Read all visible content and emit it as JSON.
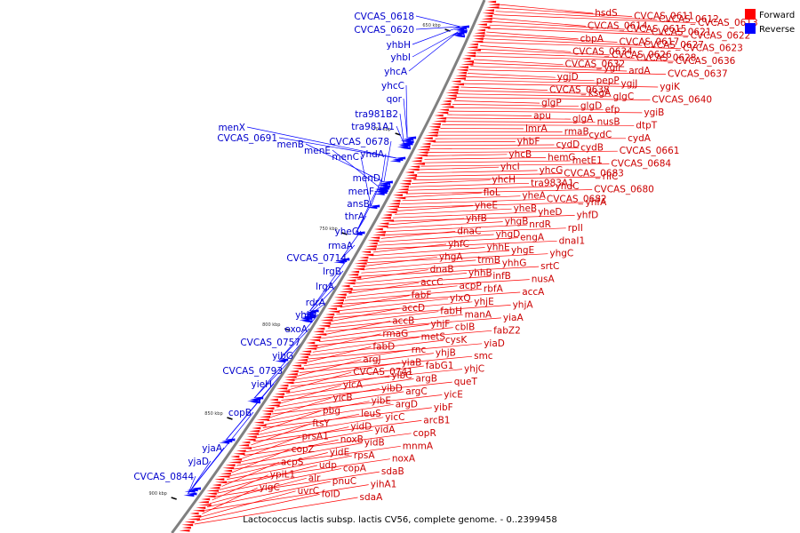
{
  "caption": "Lactococcus lactis subsp. lactis CV56, complete genome. - 0..2399458",
  "legend": [
    {
      "label": "Forward",
      "color": "#ff0000"
    },
    {
      "label": "Reverse",
      "color": "#0000ff"
    }
  ],
  "scale": [
    "650 kbp",
    "700 kbp",
    "750 kbp",
    "800 kbp",
    "850 kbp",
    "900 kbp"
  ],
  "forward_labels": [
    "hsdS",
    "CVCAS_0611",
    "CVCAS_0612",
    "CVCAS_0613",
    "CVCAS_0614",
    "CVCAS_0615",
    "CVCAS_0621",
    "CVCAS_0622",
    "cbpA",
    "CVCAS_0617",
    "CVCAS_0627",
    "CVCAS_0623",
    "CVCAS_0634",
    "CVCAS_0626",
    "CVCAS_0628",
    "CVCAS_0636",
    "CVCAS_0632",
    "ygiI",
    "ardA",
    "CVCAS_0637",
    "ygjD",
    "pepP",
    "ygjJ",
    "ygiK",
    "CVCAS_0638",
    "ksgA",
    "glgC",
    "CVCAS_0640",
    "glgP",
    "glgD",
    "efp",
    "ygiB",
    "apu",
    "glgA",
    "nusB",
    "dtpT",
    "lmrA",
    "rmaB",
    "cydC",
    "cydA",
    "yhbF",
    "cydD",
    "cydB",
    "CVCAS_0661",
    "yhcB",
    "hemG",
    "metE1",
    "CVCAS_0684",
    "yhcI",
    "yhcG",
    "CVCAS_0683",
    "rliC",
    "yhcH",
    "tra983A1",
    "yhdC",
    "CVCAS_0680",
    "floL",
    "yheA",
    "CVCAS_0682",
    "yhfA",
    "yheE",
    "yheB",
    "yheD",
    "yhfD",
    "yhfB",
    "yhgB",
    "nrdR",
    "rpII",
    "dnaC",
    "yhgD",
    "engA",
    "dnaI1",
    "yhfC",
    "yhhE",
    "yhgE",
    "yhgC",
    "yhgA",
    "trmB",
    "yhhG",
    "srtC",
    "dnaB",
    "yhhB",
    "infB",
    "nusA",
    "accC",
    "acpP",
    "rbfA",
    "accA",
    "fabF",
    "ylxQ",
    "yhjE",
    "yhjA",
    "accD",
    "fabH",
    "manA",
    "yiaA",
    "accB",
    "yhjF",
    "cblB",
    "fabZ2",
    "rmaG",
    "metS",
    "cysK",
    "yiaD",
    "fabD",
    "rnc",
    "yhjB",
    "smc",
    "argJ",
    "yiaB",
    "fabG1",
    "yhjC",
    "CVCAS_0741",
    "yibC",
    "argB",
    "queT",
    "yicA",
    "yibD",
    "argC",
    "yicE",
    "yicB",
    "yibE",
    "argD",
    "yibF",
    "pbg",
    "leuS",
    "yicC",
    "arcB1",
    "ftsY",
    "yidD",
    "yidA",
    "copR",
    "prsA1",
    "noxB",
    "yidB",
    "mnmA",
    "copZ",
    "yidE",
    "rpsA",
    "noxA",
    "acpS",
    "udp",
    "copA",
    "sdaB",
    "ypiL1",
    "alr",
    "pnuC",
    "yihA1",
    "yigC",
    "uvrC",
    "folD",
    "sdaA"
  ],
  "reverse_labels": [
    "CVCAS_0618",
    "CVCAS_0620",
    "yhbH",
    "yhbI",
    "yhcA",
    "yhcC",
    "qor",
    "tra981B2",
    "tra981A1",
    "menX",
    "CVCAS_0691",
    "menB",
    "CVCAS_0678",
    "menE",
    "yhdA",
    "menC",
    "menD",
    "menF",
    "ansB",
    "thrA",
    "yheG",
    "rmaA",
    "CVCAS_0714",
    "lrgB",
    "lrgA",
    "rdrA",
    "yhjG",
    "exoA",
    "CVCAS_0757",
    "yibG",
    "CVCAS_0793",
    "yieH",
    "copB",
    "yjaA",
    "yjaD",
    "CVCAS_0844"
  ]
}
